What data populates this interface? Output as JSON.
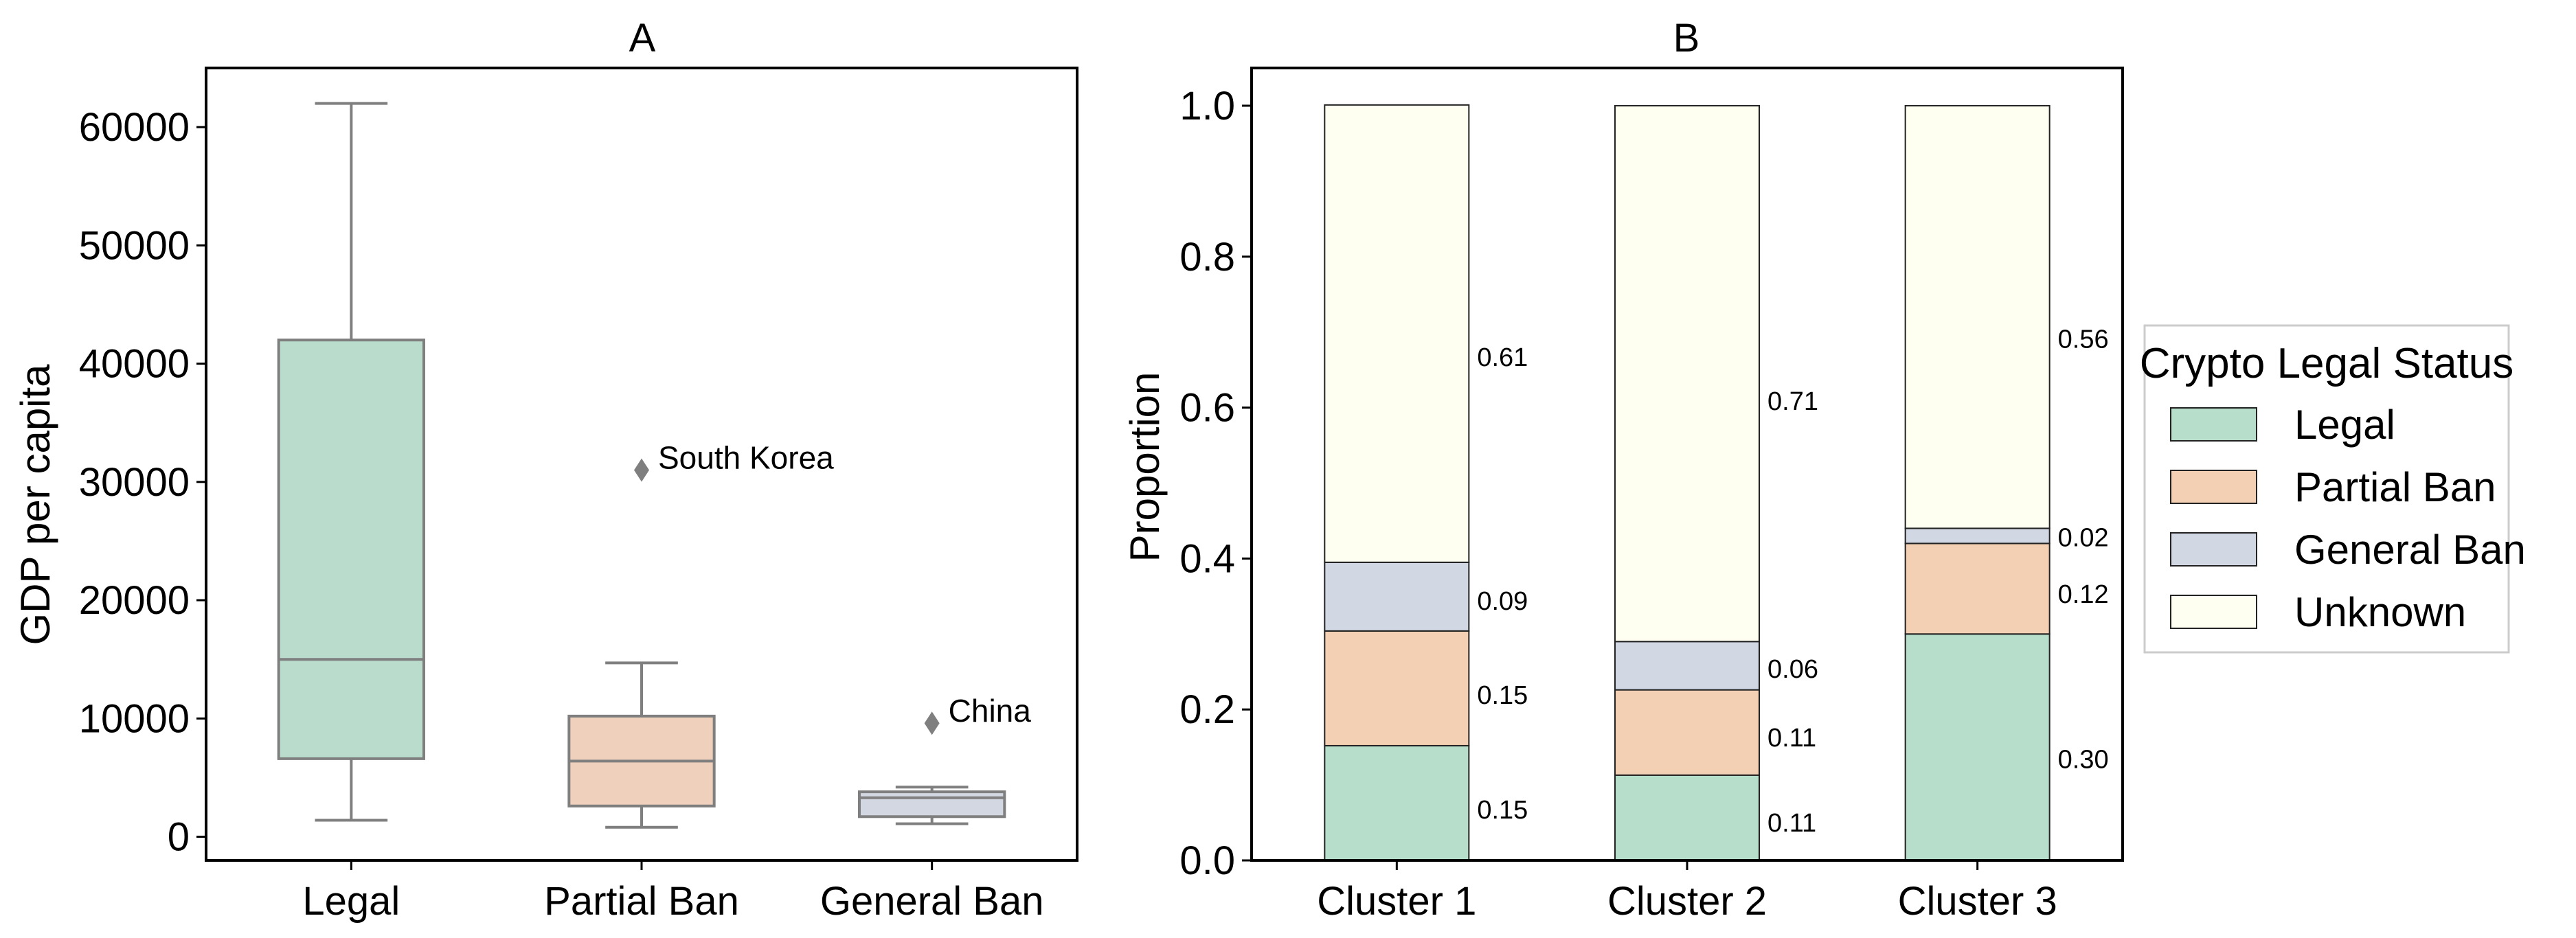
{
  "chart_data": [
    {
      "type": "box",
      "title": "A",
      "xlabel": "",
      "ylabel": "GDP per capita",
      "ylim": [
        -2000,
        65000
      ],
      "yticks": [
        0,
        10000,
        20000,
        30000,
        40000,
        50000,
        60000
      ],
      "categories": [
        "Legal",
        "Partial Ban",
        "General Ban"
      ],
      "boxes": [
        {
          "category": "Legal",
          "whisker_low": 1400,
          "q1": 6600,
          "median": 15000,
          "q3": 42000,
          "whisker_high": 62000,
          "color": "#b9dccc",
          "outliers": []
        },
        {
          "category": "Partial Ban",
          "whisker_low": 800,
          "q1": 2600,
          "median": 6400,
          "q3": 10200,
          "whisker_high": 14700,
          "color": "#efd0bc",
          "outliers": [
            {
              "value": 31000,
              "label": "South Korea"
            }
          ]
        },
        {
          "category": "General Ban",
          "whisker_low": 1100,
          "q1": 1700,
          "median": 3300,
          "q3": 3800,
          "whisker_high": 4200,
          "color": "#d2d7e2",
          "outliers": [
            {
              "value": 9600,
              "label": "China"
            }
          ]
        }
      ],
      "grid": false
    },
    {
      "type": "stacked_bar",
      "title": "B",
      "xlabel": "",
      "ylabel": "Proportion",
      "ylim": [
        0,
        1.05
      ],
      "yticks": [
        "0.0",
        "0.2",
        "0.4",
        "0.6",
        "0.8",
        "1.0"
      ],
      "categories": [
        "Cluster 1",
        "Cluster 2",
        "Cluster 3"
      ],
      "series": [
        {
          "name": "Legal",
          "color": "#b7ddcb",
          "values": [
            0.152,
            0.113,
            0.3
          ],
          "labels": [
            "0.15",
            "0.11",
            "0.30"
          ]
        },
        {
          "name": "Partial Ban",
          "color": "#f3cfb3",
          "values": [
            0.152,
            0.113,
            0.12
          ],
          "labels": [
            "0.15",
            "0.11",
            "0.12"
          ]
        },
        {
          "name": "General Ban",
          "color": "#d1d8e4",
          "values": [
            0.091,
            0.064,
            0.02
          ],
          "labels": [
            "0.09",
            "0.06",
            "0.02"
          ]
        },
        {
          "name": "Unknown",
          "color": "#fefff0",
          "values": [
            0.606,
            0.71,
            0.56
          ],
          "labels": [
            "0.61",
            "0.71",
            "0.56"
          ]
        }
      ],
      "legend": {
        "title": "Crypto Legal Status",
        "position": "right"
      },
      "grid": false
    }
  ]
}
